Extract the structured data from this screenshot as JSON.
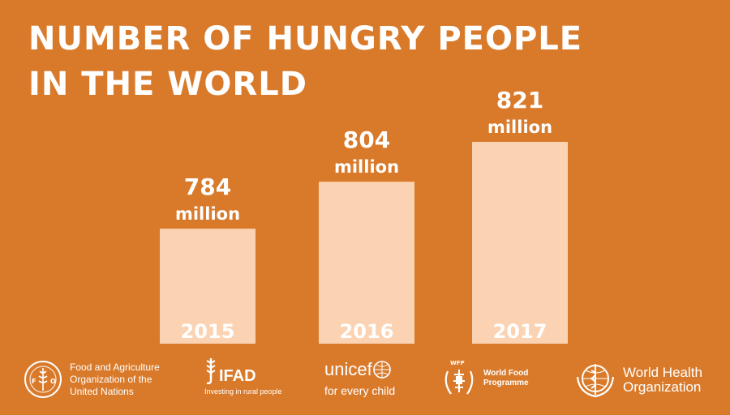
{
  "colors": {
    "background": "#d97a2b",
    "bar": "#fbd3b3",
    "text": "#ffffff"
  },
  "title_lines": [
    "NUMBER OF HUNGRY PEOPLE",
    "IN THE WORLD"
  ],
  "chart_data": {
    "type": "bar",
    "title": "NUMBER OF HUNGRY PEOPLE IN THE WORLD",
    "categories": [
      "2015",
      "2016",
      "2017"
    ],
    "values": [
      784,
      804,
      821
    ],
    "unit": "million",
    "value_labels": [
      {
        "number": "784",
        "unit": "million"
      },
      {
        "number": "804",
        "unit": "million"
      },
      {
        "number": "821",
        "unit": "million"
      }
    ],
    "xlabel": "",
    "ylabel": "",
    "ylim": [
      735,
      840
    ],
    "grid": false
  },
  "logos": {
    "fao": {
      "icon": "fao-emblem-icon",
      "lines": [
        "Food and Agriculture",
        "Organization of the",
        "United Nations"
      ]
    },
    "ifad": {
      "icon": "ifad-grain-icon",
      "wordmark": "IFAD",
      "tagline": "Investing in rural people"
    },
    "unicef": {
      "icon": "unicef-globe-icon",
      "wordmark": "unicef",
      "tagline": "for every child"
    },
    "wfp": {
      "icon": "wfp-wreath-icon",
      "small": "WFP",
      "lines": [
        "World Food",
        "Programme"
      ]
    },
    "who": {
      "icon": "who-emblem-icon",
      "lines": [
        "World Health",
        "Organization"
      ]
    }
  }
}
